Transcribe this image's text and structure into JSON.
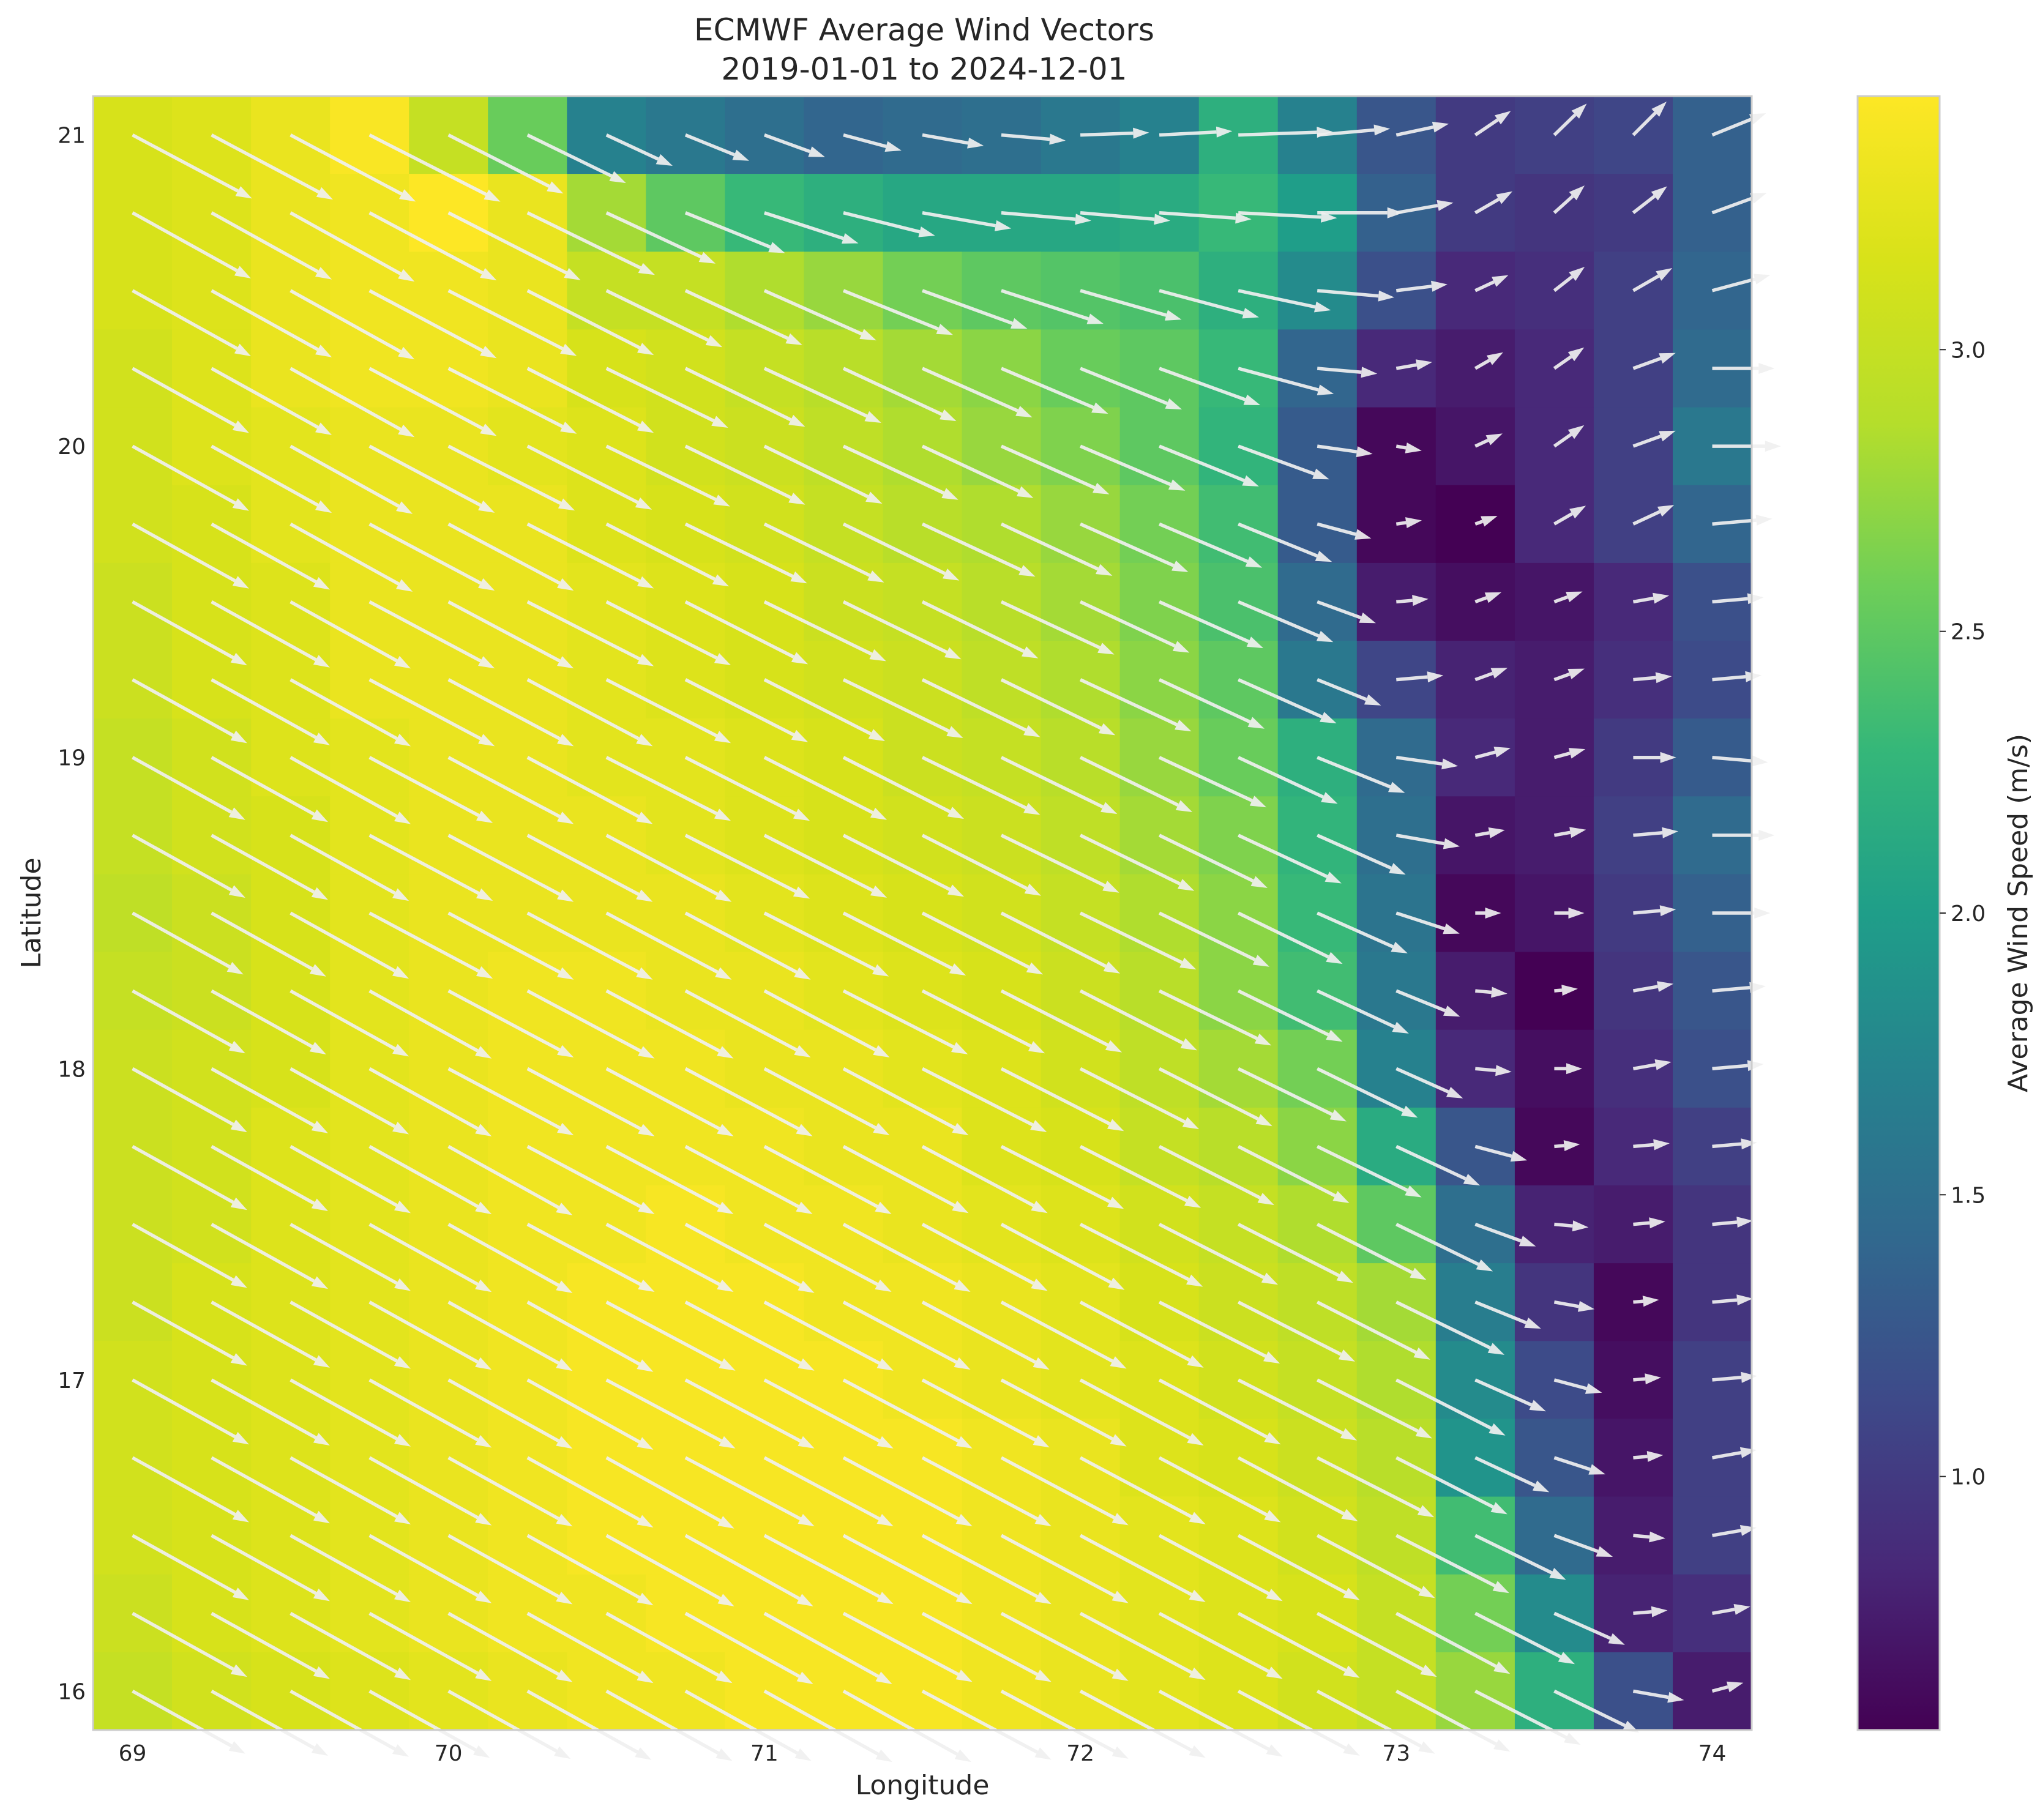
{
  "chart_data": {
    "type": "heatmap",
    "title_line1": "ECMWF Average Wind Vectors",
    "title_line2": "2019-01-01 to 2024-12-01",
    "xlabel": "Longitude",
    "ylabel": "Latitude",
    "colorbar_label": "Average Wind Speed (m/s)",
    "colormap": "viridis",
    "xlim": [
      68.875,
      74.125
    ],
    "ylim": [
      15.875,
      21.125
    ],
    "grid_resolution": 0.25,
    "x_ticks": [
      69,
      70,
      71,
      72,
      73,
      74
    ],
    "x_tick_labels": [
      "69",
      "70",
      "71",
      "72",
      "73",
      "74"
    ],
    "y_ticks": [
      16,
      17,
      18,
      19,
      20,
      21
    ],
    "y_tick_labels": [
      "16",
      "17",
      "18",
      "19",
      "20",
      "21"
    ],
    "colorbar_ticks": [
      1.0,
      1.5,
      2.0,
      2.5,
      3.0
    ],
    "colorbar_tick_labels": [
      "1.0",
      "1.5",
      "2.0",
      "2.5",
      "3.0"
    ],
    "colorbar_range": [
      0.55,
      3.45
    ],
    "arrow_color": "#f0f0f0",
    "longitudes": [
      69.0,
      69.25,
      69.5,
      69.75,
      70.0,
      70.25,
      70.5,
      70.75,
      71.0,
      71.25,
      71.5,
      71.75,
      72.0,
      72.25,
      72.5,
      72.75,
      73.0,
      73.25,
      73.5,
      73.75,
      74.0
    ],
    "latitudes": [
      21.0,
      20.75,
      20.5,
      20.25,
      20.0,
      19.75,
      19.5,
      19.25,
      19.0,
      18.75,
      18.5,
      18.25,
      18.0,
      17.75,
      17.5,
      17.25,
      17.0,
      16.75,
      16.5,
      16.25,
      16.0
    ],
    "speed": [
      [
        3.15,
        3.2,
        3.3,
        3.42,
        3.0,
        2.55,
        1.7,
        1.6,
        1.5,
        1.4,
        1.45,
        1.5,
        1.6,
        1.7,
        2.2,
        1.7,
        1.25,
        1.0,
        1.05,
        1.1,
        1.35
      ],
      [
        3.15,
        3.2,
        3.3,
        3.35,
        3.45,
        3.3,
        2.8,
        2.5,
        2.3,
        2.2,
        2.1,
        2.1,
        2.1,
        2.15,
        2.3,
        2.0,
        1.35,
        1.0,
        0.95,
        1.0,
        1.35
      ],
      [
        3.15,
        3.2,
        3.3,
        3.35,
        3.35,
        3.3,
        3.0,
        3.0,
        2.85,
        2.75,
        2.6,
        2.5,
        2.45,
        2.4,
        2.2,
        1.8,
        1.2,
        0.85,
        0.9,
        1.05,
        1.4
      ],
      [
        3.1,
        3.2,
        3.3,
        3.35,
        3.35,
        3.3,
        3.15,
        3.1,
        3.0,
        2.9,
        2.8,
        2.7,
        2.55,
        2.5,
        2.3,
        1.4,
        0.85,
        0.75,
        0.85,
        1.05,
        1.45
      ],
      [
        3.1,
        3.2,
        3.25,
        3.3,
        3.3,
        3.25,
        3.2,
        3.1,
        3.05,
        2.95,
        2.85,
        2.75,
        2.65,
        2.5,
        2.25,
        1.3,
        0.6,
        0.7,
        0.85,
        1.05,
        1.6
      ],
      [
        3.1,
        3.15,
        3.25,
        3.3,
        3.3,
        3.3,
        3.2,
        3.15,
        3.1,
        3.0,
        2.9,
        2.85,
        2.75,
        2.6,
        2.35,
        1.3,
        0.6,
        0.55,
        0.85,
        1.05,
        1.4
      ],
      [
        3.05,
        3.15,
        3.2,
        3.3,
        3.3,
        3.3,
        3.25,
        3.2,
        3.15,
        3.05,
        3.0,
        2.9,
        2.8,
        2.65,
        2.4,
        1.45,
        0.75,
        0.65,
        0.7,
        0.85,
        1.2
      ],
      [
        3.05,
        3.15,
        3.2,
        3.3,
        3.3,
        3.3,
        3.25,
        3.2,
        3.15,
        3.1,
        3.05,
        2.95,
        2.85,
        2.7,
        2.5,
        1.6,
        1.1,
        0.8,
        0.75,
        0.9,
        1.15
      ],
      [
        3.0,
        3.1,
        3.2,
        3.25,
        3.3,
        3.3,
        3.25,
        3.25,
        3.2,
        3.15,
        3.05,
        3.0,
        2.9,
        2.75,
        2.55,
        2.2,
        1.45,
        0.85,
        0.75,
        1.0,
        1.3
      ],
      [
        3.0,
        3.1,
        3.15,
        3.25,
        3.3,
        3.3,
        3.3,
        3.25,
        3.2,
        3.15,
        3.1,
        3.05,
        2.95,
        2.8,
        2.65,
        2.25,
        1.5,
        0.7,
        0.75,
        1.05,
        1.45
      ],
      [
        2.95,
        3.05,
        3.15,
        3.25,
        3.3,
        3.3,
        3.3,
        3.3,
        3.25,
        3.2,
        3.15,
        3.1,
        3.0,
        2.85,
        2.7,
        2.3,
        1.55,
        0.6,
        0.7,
        1.0,
        1.35
      ],
      [
        3.0,
        3.05,
        3.15,
        3.25,
        3.3,
        3.35,
        3.35,
        3.3,
        3.3,
        3.25,
        3.2,
        3.15,
        3.05,
        2.9,
        2.7,
        2.35,
        1.6,
        0.75,
        0.55,
        0.95,
        1.25
      ],
      [
        3.05,
        3.1,
        3.15,
        3.25,
        3.3,
        3.35,
        3.35,
        3.35,
        3.3,
        3.3,
        3.25,
        3.2,
        3.1,
        2.95,
        2.8,
        2.6,
        1.7,
        0.85,
        0.65,
        0.9,
        1.2
      ],
      [
        3.05,
        3.1,
        3.2,
        3.25,
        3.3,
        3.35,
        3.35,
        3.35,
        3.35,
        3.3,
        3.3,
        3.2,
        3.15,
        3.0,
        2.9,
        2.7,
        2.15,
        1.25,
        0.6,
        0.85,
        1.05
      ],
      [
        3.05,
        3.1,
        3.2,
        3.25,
        3.3,
        3.35,
        3.35,
        3.4,
        3.35,
        3.35,
        3.3,
        3.25,
        3.2,
        3.1,
        3.0,
        2.85,
        2.5,
        1.5,
        0.8,
        0.75,
        0.95
      ],
      [
        3.05,
        3.15,
        3.2,
        3.25,
        3.3,
        3.35,
        3.4,
        3.4,
        3.4,
        3.35,
        3.35,
        3.3,
        3.25,
        3.15,
        3.05,
        2.95,
        2.8,
        1.65,
        0.95,
        0.6,
        0.95
      ],
      [
        3.1,
        3.15,
        3.2,
        3.25,
        3.3,
        3.35,
        3.4,
        3.4,
        3.4,
        3.4,
        3.35,
        3.3,
        3.25,
        3.2,
        3.1,
        3.0,
        2.85,
        1.8,
        1.15,
        0.65,
        1.05
      ],
      [
        3.1,
        3.15,
        3.2,
        3.25,
        3.3,
        3.35,
        3.4,
        3.4,
        3.4,
        3.4,
        3.4,
        3.35,
        3.3,
        3.2,
        3.15,
        3.05,
        2.9,
        1.9,
        1.25,
        0.7,
        1.05
      ],
      [
        3.1,
        3.15,
        3.2,
        3.25,
        3.3,
        3.35,
        3.4,
        3.4,
        3.4,
        3.4,
        3.4,
        3.35,
        3.3,
        3.25,
        3.2,
        3.1,
        2.95,
        2.35,
        1.45,
        0.75,
        1.05
      ],
      [
        3.05,
        3.15,
        3.2,
        3.25,
        3.3,
        3.35,
        3.35,
        3.4,
        3.4,
        3.4,
        3.4,
        3.35,
        3.3,
        3.25,
        3.2,
        3.15,
        3.0,
        2.6,
        1.8,
        0.8,
        0.9
      ],
      [
        3.0,
        3.1,
        3.15,
        3.2,
        3.25,
        3.3,
        3.35,
        3.35,
        3.4,
        3.4,
        3.4,
        3.35,
        3.3,
        3.25,
        3.2,
        3.1,
        3.0,
        2.75,
        2.2,
        1.2,
        0.75
      ]
    ],
    "direction_deg": [
      [
        -28,
        -28,
        -28,
        -27,
        -27,
        -26,
        -25,
        -22,
        -20,
        -15,
        -10,
        -5,
        2,
        3,
        2,
        5,
        12,
        34,
        44,
        45,
        22
      ],
      [
        -29,
        -29,
        -29,
        -28,
        -27,
        -26,
        -25,
        -22,
        -18,
        -14,
        -10,
        -5,
        -5,
        -4,
        -3,
        0,
        10,
        30,
        42,
        38,
        20
      ],
      [
        -29,
        -29,
        -29,
        -28,
        -27,
        -27,
        -26,
        -25,
        -24,
        -22,
        -20,
        -18,
        -16,
        -15,
        -12,
        -5,
        7,
        25,
        38,
        30,
        15
      ],
      [
        -29,
        -29,
        -29,
        -28,
        -27,
        -27,
        -26,
        -26,
        -25,
        -25,
        -24,
        -23,
        -22,
        -20,
        -15,
        -5,
        10,
        30,
        35,
        20,
        0
      ],
      [
        -29,
        -29,
        -29,
        -28,
        -27,
        -27,
        -26,
        -26,
        -26,
        -25,
        -25,
        -24,
        -23,
        -22,
        -20,
        -8,
        -10,
        25,
        35,
        20,
        0
      ],
      [
        -29,
        -29,
        -29,
        -28,
        -28,
        -27,
        -27,
        -26,
        -26,
        -26,
        -25,
        -25,
        -24,
        -23,
        -22,
        -15,
        8,
        20,
        30,
        25,
        5
      ],
      [
        -29,
        -29,
        -29,
        -28,
        -28,
        -27,
        -27,
        -27,
        -26,
        -26,
        -26,
        -25,
        -25,
        -24,
        -23,
        -20,
        5,
        20,
        20,
        10,
        5
      ],
      [
        -29,
        -29,
        -29,
        -28,
        -28,
        -28,
        -27,
        -27,
        -27,
        -26,
        -26,
        -26,
        -25,
        -25,
        -24,
        -22,
        5,
        20,
        20,
        5,
        5
      ],
      [
        -29,
        -29,
        -29,
        -28,
        -28,
        -28,
        -27,
        -27,
        -27,
        -27,
        -26,
        -26,
        -26,
        -25,
        -25,
        -22,
        -8,
        15,
        15,
        0,
        -5
      ],
      [
        -29,
        -29,
        -29,
        -28,
        -28,
        -28,
        -28,
        -27,
        -27,
        -27,
        -27,
        -26,
        -26,
        -26,
        -25,
        -24,
        -10,
        10,
        10,
        5,
        0
      ],
      [
        -29,
        -29,
        -29,
        -28,
        -28,
        -28,
        -28,
        -28,
        -27,
        -27,
        -27,
        -27,
        -26,
        -26,
        -26,
        -24,
        -18,
        0,
        0,
        5,
        0
      ],
      [
        -29,
        -29,
        -29,
        -29,
        -28,
        -28,
        -28,
        -28,
        -28,
        -27,
        -27,
        -27,
        -27,
        -26,
        -26,
        -25,
        -22,
        -5,
        5,
        10,
        5
      ],
      [
        -29,
        -29,
        -29,
        -29,
        -28,
        -28,
        -28,
        -28,
        -28,
        -28,
        -27,
        -27,
        -27,
        -27,
        -26,
        -26,
        -24,
        -5,
        0,
        10,
        5
      ],
      [
        -29,
        -29,
        -29,
        -29,
        -29,
        -28,
        -28,
        -28,
        -28,
        -28,
        -28,
        -27,
        -27,
        -27,
        -27,
        -26,
        -25,
        -15,
        5,
        5,
        5
      ],
      [
        -29,
        -29,
        -29,
        -29,
        -29,
        -28,
        -28,
        -28,
        -28,
        -28,
        -28,
        -28,
        -27,
        -27,
        -27,
        -27,
        -26,
        -20,
        -5,
        5,
        5
      ],
      [
        -29,
        -29,
        -29,
        -29,
        -29,
        -29,
        -28,
        -28,
        -28,
        -28,
        -28,
        -28,
        -28,
        -27,
        -27,
        -27,
        -26,
        -22,
        -10,
        5,
        5
      ],
      [
        -29,
        -29,
        -29,
        -29,
        -29,
        -29,
        -28,
        -28,
        -28,
        -28,
        -28,
        -28,
        -28,
        -28,
        -27,
        -27,
        -27,
        -24,
        -15,
        5,
        5
      ],
      [
        -29,
        -29,
        -29,
        -29,
        -29,
        -29,
        -29,
        -28,
        -28,
        -28,
        -28,
        -28,
        -28,
        -28,
        -28,
        -27,
        -27,
        -25,
        -18,
        5,
        10
      ],
      [
        -29,
        -29,
        -29,
        -29,
        -29,
        -29,
        -29,
        -29,
        -28,
        -28,
        -28,
        -28,
        -28,
        -28,
        -28,
        -28,
        -27,
        -26,
        -20,
        -5,
        10
      ],
      [
        -29,
        -29,
        -29,
        -29,
        -29,
        -29,
        -29,
        -29,
        -29,
        -28,
        -28,
        -28,
        -28,
        -28,
        -28,
        -28,
        -28,
        -27,
        -24,
        5,
        10
      ],
      [
        -29,
        -29,
        -29,
        -29,
        -29,
        -29,
        -29,
        -29,
        -29,
        -29,
        -28,
        -28,
        -28,
        -28,
        -28,
        -28,
        -28,
        -27,
        -26,
        -10,
        15
      ]
    ]
  }
}
